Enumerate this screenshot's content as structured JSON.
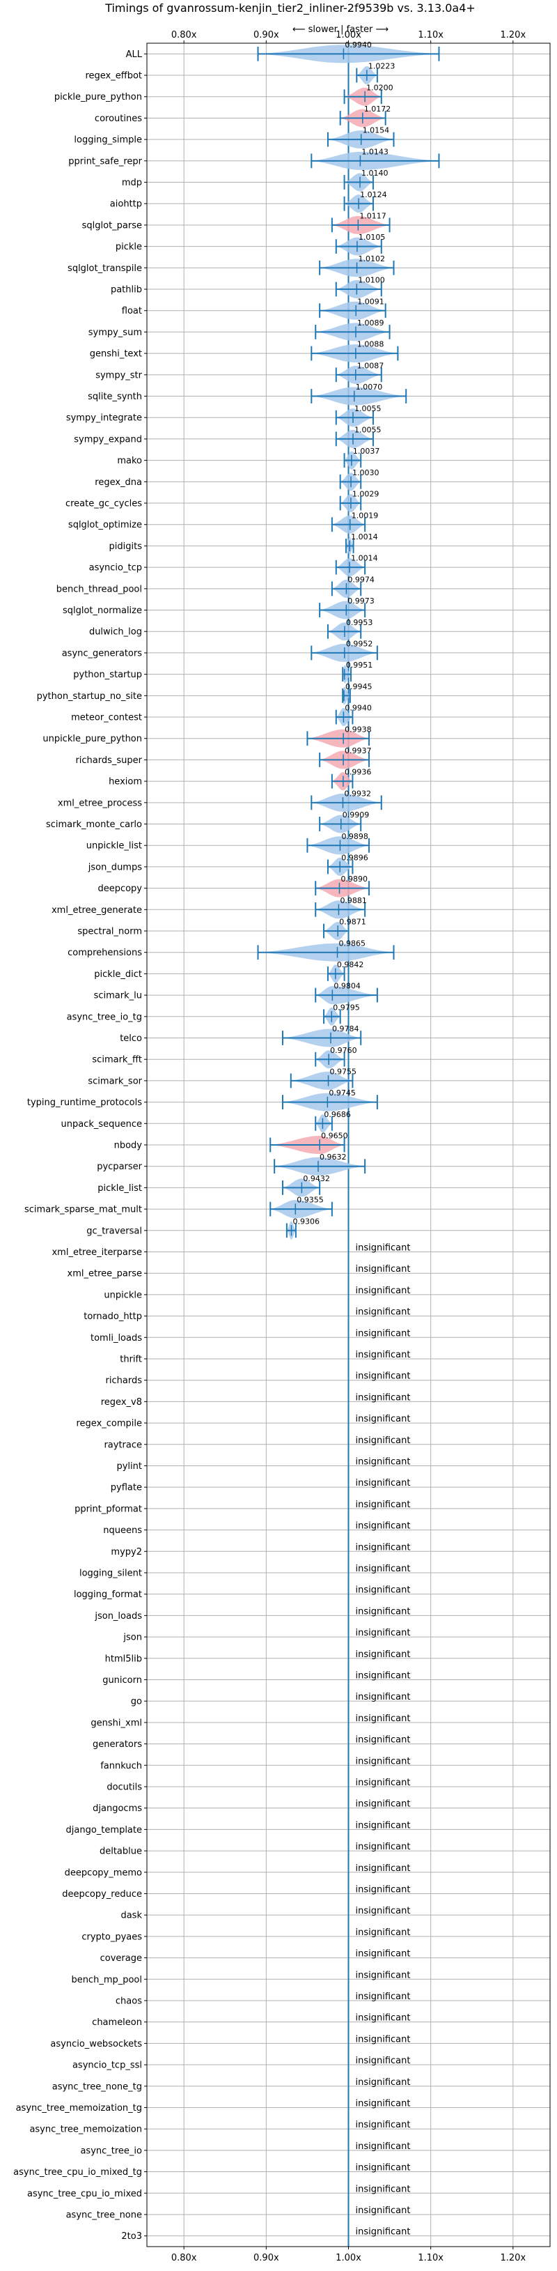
{
  "chart_data": {
    "type": "violin",
    "title": "Timings of gvanrossum-kenjin_tier2_inliner-2f9539b vs. 3.13.0a4+",
    "subtitle": "⟵ slower | faster ⟶",
    "x_ticks": [
      "0.80x",
      "0.90x",
      "1.00x",
      "1.10x",
      "1.20x"
    ],
    "x_tick_values": [
      0.8,
      0.9,
      1.0,
      1.1,
      1.2
    ],
    "xlim": [
      0.755,
      1.245
    ],
    "reference_line": 1.0,
    "grid": true,
    "insignificant_label": "insignificant",
    "colors": {
      "faster": "#a6c8ec",
      "slower": "#f4a9b3",
      "errorbar": "#1f77b4",
      "grid": "#b0b0b0"
    },
    "benchmarks": [
      {
        "name": "ALL",
        "value": 0.994,
        "label": "0.9940",
        "lo": 0.89,
        "hi": 1.11,
        "significant": true,
        "slower": false
      },
      {
        "name": "regex_effbot",
        "value": 1.0223,
        "label": "1.0223",
        "lo": 1.01,
        "hi": 1.035,
        "significant": true,
        "slower": false
      },
      {
        "name": "pickle_pure_python",
        "value": 1.02,
        "label": "1.0200",
        "lo": 0.995,
        "hi": 1.04,
        "significant": true,
        "slower": true
      },
      {
        "name": "coroutines",
        "value": 1.0172,
        "label": "1.0172",
        "lo": 0.99,
        "hi": 1.045,
        "significant": true,
        "slower": true
      },
      {
        "name": "logging_simple",
        "value": 1.0154,
        "label": "1.0154",
        "lo": 0.975,
        "hi": 1.055,
        "significant": true,
        "slower": false
      },
      {
        "name": "pprint_safe_repr",
        "value": 1.0143,
        "label": "1.0143",
        "lo": 0.955,
        "hi": 1.11,
        "significant": true,
        "slower": false
      },
      {
        "name": "mdp",
        "value": 1.014,
        "label": "1.0140",
        "lo": 0.995,
        "hi": 1.03,
        "significant": true,
        "slower": false
      },
      {
        "name": "aiohttp",
        "value": 1.0124,
        "label": "1.0124",
        "lo": 0.995,
        "hi": 1.03,
        "significant": true,
        "slower": false
      },
      {
        "name": "sqlglot_parse",
        "value": 1.0117,
        "label": "1.0117",
        "lo": 0.98,
        "hi": 1.05,
        "significant": true,
        "slower": true
      },
      {
        "name": "pickle",
        "value": 1.0105,
        "label": "1.0105",
        "lo": 0.985,
        "hi": 1.04,
        "significant": true,
        "slower": false
      },
      {
        "name": "sqlglot_transpile",
        "value": 1.0102,
        "label": "1.0102",
        "lo": 0.965,
        "hi": 1.055,
        "significant": true,
        "slower": false
      },
      {
        "name": "pathlib",
        "value": 1.01,
        "label": "1.0100",
        "lo": 0.985,
        "hi": 1.04,
        "significant": true,
        "slower": false
      },
      {
        "name": "float",
        "value": 1.0091,
        "label": "1.0091",
        "lo": 0.965,
        "hi": 1.045,
        "significant": true,
        "slower": false
      },
      {
        "name": "sympy_sum",
        "value": 1.0089,
        "label": "1.0089",
        "lo": 0.96,
        "hi": 1.05,
        "significant": true,
        "slower": false
      },
      {
        "name": "genshi_text",
        "value": 1.0088,
        "label": "1.0088",
        "lo": 0.955,
        "hi": 1.06,
        "significant": true,
        "slower": false
      },
      {
        "name": "sympy_str",
        "value": 1.0087,
        "label": "1.0087",
        "lo": 0.985,
        "hi": 1.04,
        "significant": true,
        "slower": false
      },
      {
        "name": "sqlite_synth",
        "value": 1.007,
        "label": "1.0070",
        "lo": 0.955,
        "hi": 1.07,
        "significant": true,
        "slower": false
      },
      {
        "name": "sympy_integrate",
        "value": 1.0055,
        "label": "1.0055",
        "lo": 0.985,
        "hi": 1.03,
        "significant": true,
        "slower": false
      },
      {
        "name": "sympy_expand",
        "value": 1.0055,
        "label": "1.0055",
        "lo": 0.985,
        "hi": 1.03,
        "significant": true,
        "slower": false
      },
      {
        "name": "mako",
        "value": 1.0037,
        "label": "1.0037",
        "lo": 0.995,
        "hi": 1.015,
        "significant": true,
        "slower": false
      },
      {
        "name": "regex_dna",
        "value": 1.003,
        "label": "1.0030",
        "lo": 0.99,
        "hi": 1.015,
        "significant": true,
        "slower": false
      },
      {
        "name": "create_gc_cycles",
        "value": 1.0029,
        "label": "1.0029",
        "lo": 0.99,
        "hi": 1.015,
        "significant": true,
        "slower": false
      },
      {
        "name": "sqlglot_optimize",
        "value": 1.0019,
        "label": "1.0019",
        "lo": 0.98,
        "hi": 1.02,
        "significant": true,
        "slower": false
      },
      {
        "name": "pidigits",
        "value": 1.0014,
        "label": "1.0014",
        "lo": 0.997,
        "hi": 1.006,
        "significant": true,
        "slower": false
      },
      {
        "name": "asyncio_tcp",
        "value": 1.0014,
        "label": "1.0014",
        "lo": 0.985,
        "hi": 1.02,
        "significant": true,
        "slower": false
      },
      {
        "name": "bench_thread_pool",
        "value": 0.9974,
        "label": "0.9974",
        "lo": 0.98,
        "hi": 1.015,
        "significant": true,
        "slower": false
      },
      {
        "name": "sqlglot_normalize",
        "value": 0.9973,
        "label": "0.9973",
        "lo": 0.965,
        "hi": 1.02,
        "significant": true,
        "slower": false
      },
      {
        "name": "dulwich_log",
        "value": 0.9953,
        "label": "0.9953",
        "lo": 0.975,
        "hi": 1.015,
        "significant": true,
        "slower": false
      },
      {
        "name": "async_generators",
        "value": 0.9952,
        "label": "0.9952",
        "lo": 0.955,
        "hi": 1.035,
        "significant": true,
        "slower": false
      },
      {
        "name": "python_startup",
        "value": 0.9951,
        "label": "0.9951",
        "lo": 0.993,
        "hi": 1.003,
        "significant": true,
        "slower": false
      },
      {
        "name": "python_startup_no_site",
        "value": 0.9945,
        "label": "0.9945",
        "lo": 0.993,
        "hi": 1.002,
        "significant": true,
        "slower": false
      },
      {
        "name": "meteor_contest",
        "value": 0.994,
        "label": "0.9940",
        "lo": 0.985,
        "hi": 1.005,
        "significant": true,
        "slower": false
      },
      {
        "name": "unpickle_pure_python",
        "value": 0.9938,
        "label": "0.9938",
        "lo": 0.95,
        "hi": 1.025,
        "significant": true,
        "slower": true
      },
      {
        "name": "richards_super",
        "value": 0.9937,
        "label": "0.9937",
        "lo": 0.965,
        "hi": 1.025,
        "significant": true,
        "slower": true
      },
      {
        "name": "hexiom",
        "value": 0.9936,
        "label": "0.9936",
        "lo": 0.98,
        "hi": 1.005,
        "significant": true,
        "slower": true
      },
      {
        "name": "xml_etree_process",
        "value": 0.9932,
        "label": "0.9932",
        "lo": 0.955,
        "hi": 1.04,
        "significant": true,
        "slower": false
      },
      {
        "name": "scimark_monte_carlo",
        "value": 0.9909,
        "label": "0.9909",
        "lo": 0.965,
        "hi": 1.015,
        "significant": true,
        "slower": false
      },
      {
        "name": "unpickle_list",
        "value": 0.9898,
        "label": "0.9898",
        "lo": 0.95,
        "hi": 1.025,
        "significant": true,
        "slower": false
      },
      {
        "name": "json_dumps",
        "value": 0.9896,
        "label": "0.9896",
        "lo": 0.975,
        "hi": 1.005,
        "significant": true,
        "slower": false
      },
      {
        "name": "deepcopy",
        "value": 0.989,
        "label": "0.9890",
        "lo": 0.96,
        "hi": 1.025,
        "significant": true,
        "slower": true
      },
      {
        "name": "xml_etree_generate",
        "value": 0.9881,
        "label": "0.9881",
        "lo": 0.96,
        "hi": 1.02,
        "significant": true,
        "slower": false
      },
      {
        "name": "spectral_norm",
        "value": 0.9871,
        "label": "0.9871",
        "lo": 0.97,
        "hi": 1.0,
        "significant": true,
        "slower": false
      },
      {
        "name": "comprehensions",
        "value": 0.9865,
        "label": "0.9865",
        "lo": 0.89,
        "hi": 1.055,
        "significant": true,
        "slower": false
      },
      {
        "name": "pickle_dict",
        "value": 0.9842,
        "label": "0.9842",
        "lo": 0.975,
        "hi": 0.995,
        "significant": true,
        "slower": false
      },
      {
        "name": "scimark_lu",
        "value": 0.9804,
        "label": "0.9804",
        "lo": 0.96,
        "hi": 1.035,
        "significant": true,
        "slower": false
      },
      {
        "name": "async_tree_io_tg",
        "value": 0.9795,
        "label": "0.9795",
        "lo": 0.97,
        "hi": 0.99,
        "significant": true,
        "slower": false
      },
      {
        "name": "telco",
        "value": 0.9784,
        "label": "0.9784",
        "lo": 0.92,
        "hi": 1.015,
        "significant": true,
        "slower": false
      },
      {
        "name": "scimark_fft",
        "value": 0.976,
        "label": "0.9760",
        "lo": 0.96,
        "hi": 0.995,
        "significant": true,
        "slower": false
      },
      {
        "name": "scimark_sor",
        "value": 0.9755,
        "label": "0.9755",
        "lo": 0.93,
        "hi": 1.005,
        "significant": true,
        "slower": false
      },
      {
        "name": "typing_runtime_protocols",
        "value": 0.9745,
        "label": "0.9745",
        "lo": 0.92,
        "hi": 1.035,
        "significant": true,
        "slower": false
      },
      {
        "name": "unpack_sequence",
        "value": 0.9686,
        "label": "0.9686",
        "lo": 0.96,
        "hi": 0.98,
        "significant": true,
        "slower": false
      },
      {
        "name": "nbody",
        "value": 0.965,
        "label": "0.9650",
        "lo": 0.905,
        "hi": 0.995,
        "significant": true,
        "slower": true
      },
      {
        "name": "pycparser",
        "value": 0.9632,
        "label": "0.9632",
        "lo": 0.91,
        "hi": 1.02,
        "significant": true,
        "slower": false
      },
      {
        "name": "pickle_list",
        "value": 0.9432,
        "label": "0.9432",
        "lo": 0.92,
        "hi": 0.965,
        "significant": true,
        "slower": false
      },
      {
        "name": "scimark_sparse_mat_mult",
        "value": 0.9355,
        "label": "0.9355",
        "lo": 0.905,
        "hi": 0.98,
        "significant": true,
        "slower": false
      },
      {
        "name": "gc_traversal",
        "value": 0.9306,
        "label": "0.9306",
        "lo": 0.925,
        "hi": 0.936,
        "significant": true,
        "slower": false
      },
      {
        "name": "xml_etree_iterparse",
        "significant": false
      },
      {
        "name": "xml_etree_parse",
        "significant": false
      },
      {
        "name": "unpickle",
        "significant": false
      },
      {
        "name": "tornado_http",
        "significant": false
      },
      {
        "name": "tomli_loads",
        "significant": false
      },
      {
        "name": "thrift",
        "significant": false
      },
      {
        "name": "richards",
        "significant": false
      },
      {
        "name": "regex_v8",
        "significant": false
      },
      {
        "name": "regex_compile",
        "significant": false
      },
      {
        "name": "raytrace",
        "significant": false
      },
      {
        "name": "pylint",
        "significant": false
      },
      {
        "name": "pyflate",
        "significant": false
      },
      {
        "name": "pprint_pformat",
        "significant": false
      },
      {
        "name": "nqueens",
        "significant": false
      },
      {
        "name": "mypy2",
        "significant": false
      },
      {
        "name": "logging_silent",
        "significant": false
      },
      {
        "name": "logging_format",
        "significant": false
      },
      {
        "name": "json_loads",
        "significant": false
      },
      {
        "name": "json",
        "significant": false
      },
      {
        "name": "html5lib",
        "significant": false
      },
      {
        "name": "gunicorn",
        "significant": false
      },
      {
        "name": "go",
        "significant": false
      },
      {
        "name": "genshi_xml",
        "significant": false
      },
      {
        "name": "generators",
        "significant": false
      },
      {
        "name": "fannkuch",
        "significant": false
      },
      {
        "name": "docutils",
        "significant": false
      },
      {
        "name": "djangocms",
        "significant": false
      },
      {
        "name": "django_template",
        "significant": false
      },
      {
        "name": "deltablue",
        "significant": false
      },
      {
        "name": "deepcopy_memo",
        "significant": false
      },
      {
        "name": "deepcopy_reduce",
        "significant": false
      },
      {
        "name": "dask",
        "significant": false
      },
      {
        "name": "crypto_pyaes",
        "significant": false
      },
      {
        "name": "coverage",
        "significant": false
      },
      {
        "name": "bench_mp_pool",
        "significant": false
      },
      {
        "name": "chaos",
        "significant": false
      },
      {
        "name": "chameleon",
        "significant": false
      },
      {
        "name": "asyncio_websockets",
        "significant": false
      },
      {
        "name": "asyncio_tcp_ssl",
        "significant": false
      },
      {
        "name": "async_tree_none_tg",
        "significant": false
      },
      {
        "name": "async_tree_memoization_tg",
        "significant": false
      },
      {
        "name": "async_tree_memoization",
        "significant": false
      },
      {
        "name": "async_tree_io",
        "significant": false
      },
      {
        "name": "async_tree_cpu_io_mixed_tg",
        "significant": false
      },
      {
        "name": "async_tree_cpu_io_mixed",
        "significant": false
      },
      {
        "name": "async_tree_none",
        "significant": false
      },
      {
        "name": "2to3",
        "significant": false
      }
    ]
  }
}
